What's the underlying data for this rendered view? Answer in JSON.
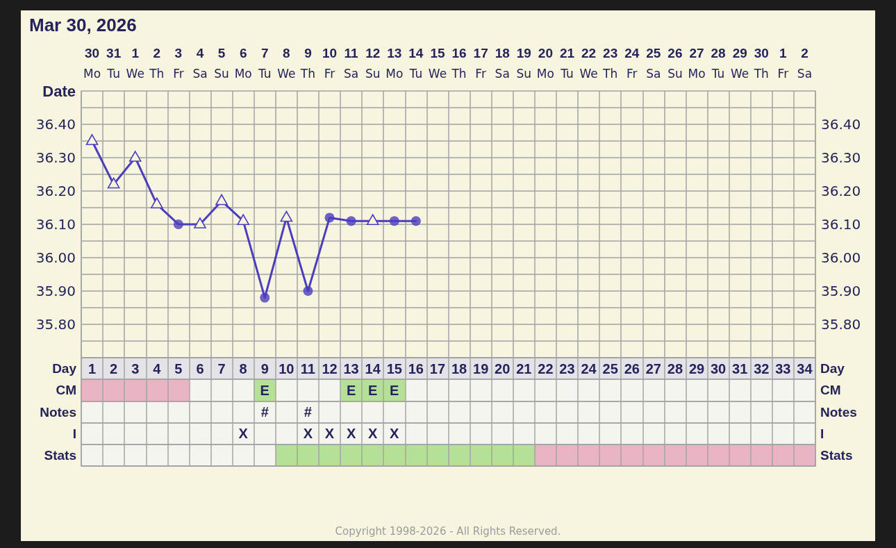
{
  "chart_data": [
    {
      "type": "line",
      "title": "Mar 30, 2026",
      "xlabel": "Date",
      "categories": [
        "30\nMo",
        "31\nTu",
        "1\nWe",
        "2\nTh",
        "3\nFr",
        "4\nSa",
        "5\nSu",
        "6\nMo",
        "7\nTu",
        "8\nWe",
        "9\nTh",
        "10\nFr",
        "11\nSa",
        "12\nSu",
        "13\nMo",
        "14\nTu",
        "15\nWe",
        "16\nTh",
        "17\nFr",
        "18\nSa",
        "19\nSu",
        "20\nMo",
        "21\nTu",
        "22\nWe",
        "23\nTh",
        "24\nFr",
        "25\nSa",
        "26\nSu",
        "27\nMo",
        "28\nTu",
        "29\nWe",
        "30\nTh",
        "1\nFr",
        "2\nSa"
      ],
      "series": [
        {
          "type": "line",
          "color": "#4b3dbd",
          "marker": "none",
          "values": [
            36.35,
            36.22,
            36.3,
            36.16,
            36.1,
            36.1,
            36.17,
            36.11,
            35.88,
            36.12,
            35.9,
            36.12,
            36.11,
            36.11,
            36.11,
            36.11,
            null,
            null,
            null,
            null,
            null,
            null,
            null,
            null,
            null,
            null,
            null,
            null,
            null,
            null,
            null,
            null,
            null,
            null
          ]
        },
        {
          "type": "scatter",
          "color": "#4b3dbd",
          "marker": "triangle",
          "values": [
            36.35,
            36.22,
            36.3,
            36.16,
            null,
            36.1,
            36.17,
            36.11,
            null,
            36.12,
            null,
            null,
            null,
            36.11,
            null,
            null,
            null,
            null,
            null,
            null,
            null,
            null,
            null,
            null,
            null,
            null,
            null,
            null,
            null,
            null,
            null,
            null,
            null,
            null
          ]
        },
        {
          "type": "scatter",
          "color": "#4b3dbd",
          "marker": "circle",
          "values": [
            null,
            null,
            null,
            null,
            36.1,
            null,
            null,
            null,
            35.88,
            null,
            35.9,
            36.12,
            36.11,
            null,
            36.11,
            36.11,
            null,
            null,
            null,
            null,
            null,
            null,
            null,
            null,
            null,
            null,
            null,
            null,
            null,
            null,
            null,
            null,
            null,
            null
          ]
        }
      ],
      "ylim": [
        35.7,
        36.5
      ],
      "yticks": [
        {
          "value": 35.75,
          "label": null
        },
        {
          "value": 35.8,
          "label": "35.80"
        },
        {
          "value": 35.85,
          "label": null
        },
        {
          "value": 35.9,
          "label": "35.90"
        },
        {
          "value": 35.95,
          "label": null
        },
        {
          "value": 36.0,
          "label": "36.00"
        },
        {
          "value": 36.05,
          "label": null
        },
        {
          "value": 36.1,
          "label": "36.10"
        },
        {
          "value": 36.15,
          "label": null
        },
        {
          "value": 36.2,
          "label": "36.20"
        },
        {
          "value": 36.25,
          "label": null
        },
        {
          "value": 36.3,
          "label": "36.30"
        },
        {
          "value": 36.35,
          "label": null
        },
        {
          "value": 36.4,
          "label": "36.40"
        },
        {
          "value": 36.45,
          "label": null
        },
        {
          "value": 36.5,
          "label": null
        }
      ],
      "y2lim": [
        35.7,
        36.5
      ],
      "y2ticks": [
        {
          "value": 35.75,
          "label": null
        },
        {
          "value": 35.8,
          "label": "35.80"
        },
        {
          "value": 35.85,
          "label": null
        },
        {
          "value": 35.9,
          "label": "35.90"
        },
        {
          "value": 35.95,
          "label": null
        },
        {
          "value": 36.0,
          "label": "36.00"
        },
        {
          "value": 36.05,
          "label": null
        },
        {
          "value": 36.1,
          "label": "36.10"
        },
        {
          "value": 36.15,
          "label": null
        },
        {
          "value": 36.2,
          "label": "36.20"
        },
        {
          "value": 36.25,
          "label": null
        },
        {
          "value": 36.3,
          "label": "36.30"
        },
        {
          "value": 36.35,
          "label": null
        },
        {
          "value": 36.4,
          "label": "36.40"
        },
        {
          "value": 36.45,
          "label": null
        },
        {
          "value": 36.5,
          "label": null
        }
      ],
      "grid": true
    },
    {
      "type": "bar",
      "orientation": "horizontal",
      "categories": [
        "Day",
        "CM",
        "Notes",
        "I",
        "Stats"
      ],
      "y2_categories": [
        "Day",
        "CM",
        "Notes",
        "I",
        "Stats"
      ],
      "series": [
        {
          "color": "#e3e3e8",
          "base": [
            0.5,
            null,
            null,
            null,
            null
          ],
          "values": [
            34,
            null,
            null,
            null,
            null
          ]
        },
        {
          "color": "#f5f5f0",
          "base": [
            null,
            5.5,
            0.5,
            0.5,
            0.5
          ],
          "values": [
            null,
            3,
            34,
            34,
            9
          ]
        },
        {
          "color": "#f5f5f0",
          "base": [
            null,
            9.5,
            null,
            null,
            null
          ],
          "values": [
            null,
            3,
            null,
            null,
            null
          ]
        },
        {
          "color": "#f5f5f0",
          "base": [
            null,
            15.5,
            null,
            null,
            null
          ],
          "values": [
            null,
            19,
            null,
            null,
            null
          ]
        },
        {
          "color": "#e9b4c4",
          "base": [
            null,
            0.5,
            null,
            null,
            21.5
          ],
          "values": [
            null,
            5,
            null,
            null,
            13
          ]
        },
        {
          "color": "#b4e197",
          "base": [
            null,
            8.5,
            null,
            null,
            9.5
          ],
          "values": [
            null,
            1,
            null,
            null,
            12
          ]
        },
        {
          "color": "#b4e197",
          "base": [
            null,
            12.5,
            null,
            null,
            null
          ],
          "values": [
            null,
            3,
            null,
            null,
            null
          ]
        }
      ],
      "xlim": [
        0.5,
        34.5
      ],
      "xticks": [
        1,
        2,
        3,
        4,
        5,
        6,
        7,
        8,
        9,
        10,
        11,
        12,
        13,
        14,
        15,
        16,
        17,
        18,
        19,
        20,
        21,
        22,
        23,
        24,
        25,
        26,
        27,
        28,
        29,
        30,
        31,
        32,
        33,
        34
      ],
      "grid": true,
      "annotations": [
        {
          "text": "E",
          "x": 9,
          "y": "CM"
        },
        {
          "text": "E",
          "x": 13,
          "y": "CM"
        },
        {
          "text": "E",
          "x": 14,
          "y": "CM"
        },
        {
          "text": "E",
          "x": 15,
          "y": "CM"
        },
        {
          "text": "#",
          "x": 9,
          "y": "Notes"
        },
        {
          "text": "#",
          "x": 11,
          "y": "Notes"
        },
        {
          "text": "X",
          "x": 8,
          "y": "I"
        },
        {
          "text": "X",
          "x": 11,
          "y": "I"
        },
        {
          "text": "X",
          "x": 12,
          "y": "I"
        },
        {
          "text": "X",
          "x": 13,
          "y": "I"
        },
        {
          "text": "X",
          "x": 14,
          "y": "I"
        },
        {
          "text": "X",
          "x": 15,
          "y": "I"
        },
        "Copyright 1998-2026 - All Rights Reserved."
      ]
    }
  ]
}
